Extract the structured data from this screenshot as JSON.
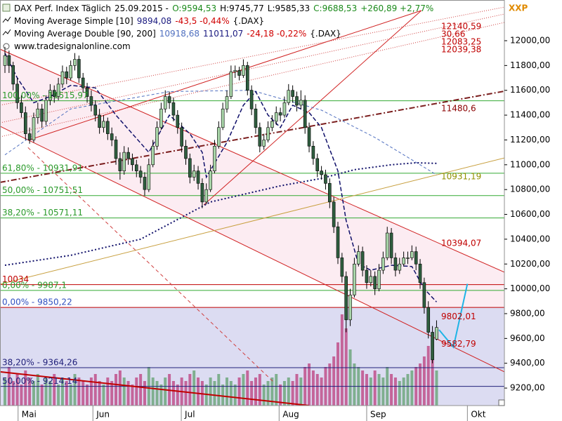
{
  "chart_data": {
    "type": "candlestick",
    "header": [
      [
        {
          "text": "DAX Perf. Index Täglich",
          "color": "#000000"
        },
        {
          "text": "25.09.2015 -",
          "color": "#000000"
        },
        {
          "text": "O:9594,53",
          "color": "#1a8a1a"
        },
        {
          "text": "H:9745,77",
          "color": "#000000"
        },
        {
          "text": "L:9585,33",
          "color": "#000000"
        },
        {
          "text": "C:9688,53",
          "color": "#1a8a1a"
        },
        {
          "text": "+260,89 +2,77%",
          "color": "#1a8a1a"
        }
      ],
      [
        {
          "text": "Moving Average Simple [10]",
          "color": "#000000"
        },
        {
          "text": "9894,08",
          "color": "#1a1a80"
        },
        {
          "text": "-43,5 -0,44%",
          "color": "#d00000"
        },
        {
          "text": "{.DAX}",
          "color": "#000000"
        }
      ],
      [
        {
          "text": "Moving Average Double [90, 200]",
          "color": "#000000"
        },
        {
          "text": "10918,68",
          "color": "#4f6fbf"
        },
        {
          "text": "11011,07",
          "color": "#1a1a80"
        },
        {
          "text": "-24,18 -0,22%",
          "color": "#d00000"
        },
        {
          "text": "{.DAX}",
          "color": "#000000"
        }
      ],
      [
        {
          "text": "www.tradesignalonline.com",
          "color": "#000000"
        }
      ]
    ],
    "corner_label": "XXP",
    "xlim": [
      -1.2,
      121.5
    ],
    "xticks": [
      {
        "value": 3.2,
        "label": "Mai"
      },
      {
        "value": 21.4,
        "label": "Jun"
      },
      {
        "value": 42.9,
        "label": "Jul"
      },
      {
        "value": 66.7,
        "label": "Aug"
      },
      {
        "value": 88.0,
        "label": "Sep"
      },
      {
        "value": 112.5,
        "label": "Okt"
      }
    ],
    "ylim": [
      9059,
      12328
    ],
    "yticks": [
      {
        "value": 9200,
        "label": "9200,00"
      },
      {
        "value": 9400,
        "label": "9400,00"
      },
      {
        "value": 9600,
        "label": "9600,00"
      },
      {
        "value": 9800,
        "label": "9800,00"
      },
      {
        "value": 10000,
        "label": "10000,00"
      },
      {
        "value": 10200,
        "label": "10200,00"
      },
      {
        "value": 10400,
        "label": "10400,00"
      },
      {
        "value": 10600,
        "label": "10600,00"
      },
      {
        "value": 10800,
        "label": "10800,00"
      },
      {
        "value": 11000,
        "label": "11000,00"
      },
      {
        "value": 11200,
        "label": "11200,00"
      },
      {
        "value": 11400,
        "label": "11400,00"
      },
      {
        "value": 11600,
        "label": "11600,00"
      },
      {
        "value": 11800,
        "label": "11800,00"
      },
      {
        "value": 12000,
        "label": "12000,00"
      }
    ],
    "up_color": "#a8d5a8",
    "down_color": "#2f5f3f",
    "ohlc": [
      [
        11800,
        11950,
        11740,
        11880
      ],
      [
        11880,
        11920,
        11740,
        11800
      ],
      [
        11800,
        11830,
        11600,
        11650
      ],
      [
        11650,
        11700,
        11450,
        11500
      ],
      [
        11500,
        11560,
        11380,
        11420
      ],
      [
        11420,
        11470,
        11200,
        11250
      ],
      [
        11250,
        11300,
        11170,
        11200
      ],
      [
        11200,
        11420,
        11180,
        11380
      ],
      [
        11380,
        11500,
        11330,
        11450
      ],
      [
        11450,
        11490,
        11300,
        11350
      ],
      [
        11350,
        11560,
        11320,
        11520
      ],
      [
        11520,
        11650,
        11480,
        11600
      ],
      [
        11600,
        11640,
        11500,
        11550
      ],
      [
        11550,
        11700,
        11520,
        11650
      ],
      [
        11650,
        11800,
        11620,
        11750
      ],
      [
        11750,
        11790,
        11650,
        11700
      ],
      [
        11700,
        11840,
        11680,
        11800
      ],
      [
        11800,
        11900,
        11760,
        11850
      ],
      [
        11850,
        11880,
        11660,
        11700
      ],
      [
        11700,
        11740,
        11580,
        11620
      ],
      [
        11620,
        11660,
        11500,
        11550
      ],
      [
        11550,
        11600,
        11430,
        11480
      ],
      [
        11480,
        11520,
        11350,
        11400
      ],
      [
        11400,
        11450,
        11250,
        11300
      ],
      [
        11300,
        11400,
        11260,
        11350
      ],
      [
        11350,
        11380,
        11200,
        11250
      ],
      [
        11250,
        11300,
        11150,
        11200
      ],
      [
        11200,
        11230,
        11000,
        11050
      ],
      [
        11050,
        11100,
        10880,
        10950
      ],
      [
        10950,
        11150,
        10920,
        11100
      ],
      [
        11100,
        11140,
        11000,
        11050
      ],
      [
        11050,
        11090,
        10950,
        11000
      ],
      [
        11000,
        11040,
        10900,
        10950
      ],
      [
        10950,
        10990,
        10850,
        10900
      ],
      [
        10900,
        10940,
        10750,
        10800
      ],
      [
        10800,
        11050,
        10780,
        11000
      ],
      [
        11000,
        11200,
        10980,
        11150
      ],
      [
        11150,
        11350,
        11120,
        11300
      ],
      [
        11300,
        11500,
        11280,
        11450
      ],
      [
        11450,
        11600,
        11420,
        11550
      ],
      [
        11550,
        11590,
        11450,
        11500
      ],
      [
        11500,
        11540,
        11350,
        11400
      ],
      [
        11400,
        11440,
        11250,
        11300
      ],
      [
        11300,
        11340,
        11100,
        11150
      ],
      [
        11150,
        11200,
        11000,
        11050
      ],
      [
        11050,
        11090,
        10850,
        10900
      ],
      [
        10900,
        11000,
        10870,
        10950
      ],
      [
        10950,
        10990,
        10800,
        10850
      ],
      [
        10850,
        10890,
        10650,
        10700
      ],
      [
        10700,
        10850,
        10680,
        10800
      ],
      [
        10800,
        11000,
        10780,
        10950
      ],
      [
        10950,
        11200,
        10930,
        11150
      ],
      [
        11150,
        11350,
        11130,
        11300
      ],
      [
        11300,
        11500,
        11280,
        11450
      ],
      [
        11450,
        11600,
        11420,
        11550
      ],
      [
        11550,
        11800,
        11530,
        11750
      ],
      [
        11750,
        11800,
        11700,
        11760
      ],
      [
        11760,
        11790,
        11680,
        11720
      ],
      [
        11720,
        11850,
        11700,
        11800
      ],
      [
        11800,
        11830,
        11560,
        11600
      ],
      [
        11600,
        11640,
        11400,
        11450
      ],
      [
        11450,
        11490,
        11250,
        11300
      ],
      [
        11300,
        11340,
        11100,
        11150
      ],
      [
        11150,
        11250,
        11120,
        11200
      ],
      [
        11200,
        11350,
        11180,
        11300
      ],
      [
        11300,
        11400,
        11270,
        11350
      ],
      [
        11350,
        11470,
        11320,
        11420
      ],
      [
        11420,
        11460,
        11350,
        11400
      ],
      [
        11400,
        11550,
        11380,
        11500
      ],
      [
        11500,
        11650,
        11480,
        11600
      ],
      [
        11600,
        11640,
        11500,
        11550
      ],
      [
        11550,
        11590,
        11430,
        11480
      ],
      [
        11480,
        11600,
        11450,
        11520
      ],
      [
        11520,
        11560,
        11250,
        11300
      ],
      [
        11300,
        11340,
        11100,
        11150
      ],
      [
        11150,
        11190,
        11000,
        11050
      ],
      [
        11050,
        11090,
        10900,
        10950
      ],
      [
        10950,
        10990,
        10880,
        10920
      ],
      [
        10920,
        10960,
        10800,
        10850
      ],
      [
        10850,
        10890,
        10650,
        10700
      ],
      [
        10700,
        10740,
        10450,
        10500
      ],
      [
        10500,
        10540,
        10200,
        10250
      ],
      [
        10250,
        10290,
        10050,
        10100
      ],
      [
        10100,
        10140,
        9650,
        9750
      ],
      [
        9750,
        10000,
        9700,
        9950
      ],
      [
        9950,
        10250,
        9930,
        10200
      ],
      [
        10200,
        10350,
        10180,
        10300
      ],
      [
        10300,
        10340,
        10100,
        10150
      ],
      [
        10150,
        10190,
        10000,
        10050
      ],
      [
        10050,
        10150,
        10020,
        10100
      ],
      [
        10100,
        10140,
        9950,
        10000
      ],
      [
        10000,
        10200,
        9980,
        10150
      ],
      [
        10150,
        10300,
        10120,
        10250
      ],
      [
        10250,
        10500,
        10230,
        10450
      ],
      [
        10450,
        10490,
        10200,
        10250
      ],
      [
        10250,
        10290,
        10100,
        10150
      ],
      [
        10150,
        10250,
        10120,
        10200
      ],
      [
        10200,
        10300,
        10180,
        10250
      ],
      [
        10250,
        10300,
        10200,
        10250
      ],
      [
        10250,
        10350,
        10230,
        10300
      ],
      [
        10300,
        10340,
        10150,
        10200
      ],
      [
        10200,
        10240,
        10000,
        10050
      ],
      [
        10050,
        10090,
        9800,
        9850
      ],
      [
        9850,
        9900,
        9600,
        9650
      ],
      [
        9650,
        9700,
        9400,
        9427.64
      ],
      [
        9594.53,
        9745.77,
        9585.33,
        9688.53
      ]
    ],
    "volume": [
      40,
      55,
      35,
      45,
      30,
      50,
      40,
      35,
      45,
      30,
      40,
      35,
      45,
      30,
      40,
      35,
      30,
      45,
      40,
      35,
      30,
      40,
      45,
      35,
      30,
      40,
      35,
      45,
      50,
      40,
      35,
      30,
      40,
      45,
      35,
      55,
      40,
      35,
      30,
      40,
      45,
      35,
      30,
      40,
      35,
      45,
      50,
      40,
      35,
      30,
      40,
      35,
      45,
      30,
      40,
      35,
      30,
      40,
      45,
      50,
      35,
      40,
      45,
      30,
      35,
      40,
      45,
      30,
      35,
      40,
      35,
      45,
      40,
      55,
      60,
      50,
      45,
      40,
      55,
      60,
      70,
      90,
      130,
      110,
      80,
      60,
      55,
      50,
      45,
      40,
      50,
      45,
      40,
      55,
      45,
      40,
      35,
      40,
      45,
      50,
      55,
      60,
      70,
      85,
      65,
      50
    ],
    "volume_up_color": "#7faf8f",
    "volume_down_color": "#c4659a",
    "overlays": [
      {
        "color": "#4f6fbf",
        "dash": "4,3",
        "width": 1,
        "x": [
          0,
          16,
          40,
          60,
          77,
          90,
          100,
          105
        ],
        "values": [
          11080,
          11450,
          11590,
          11600,
          11440,
          11220,
          11020,
          10918.68
        ]
      },
      {
        "color": "#10106a",
        "dash": "2,3",
        "width": 2,
        "x": [
          0,
          16,
          33,
          50,
          67,
          77,
          85,
          94,
          100,
          105
        ],
        "values": [
          10190,
          10270,
          10400,
          10700,
          10830,
          10890,
          10960,
          11000,
          11016,
          11011.07
        ]
      },
      {
        "color": "#10106a",
        "dash": "6,3",
        "width": 1.5,
        "x": [
          0,
          3,
          7,
          11,
          16,
          22,
          27,
          31,
          35,
          40,
          45,
          48,
          49,
          54,
          58,
          61,
          64,
          67,
          70,
          74,
          77,
          81,
          83,
          86,
          89,
          94,
          99,
          102,
          105
        ],
        "values": [
          11900,
          11700,
          11500,
          11550,
          11640,
          11620,
          11400,
          11250,
          11100,
          11400,
          11250,
          11100,
          10900,
          11180,
          11480,
          11590,
          11400,
          11300,
          11480,
          11420,
          11300,
          10950,
          10550,
          10200,
          10150,
          10190,
          10180,
          10000,
          9894.08
        ]
      }
    ],
    "trendlines": [
      {
        "color": "#d02020",
        "dash": "",
        "width": 1,
        "fill": "#fcecf2",
        "x": [
          -1.2,
          121.5
        ],
        "values": [
          11932,
          10134
        ]
      },
      {
        "color": "#d02020",
        "dash": "",
        "width": 1,
        "x": [
          -1.2,
          121.5
        ],
        "values": [
          11310,
          9331
        ]
      },
      {
        "color": "#d02020",
        "dash": "",
        "width": 1,
        "x": [
          5.6,
          101.3
        ],
        "values": [
          11197,
          12243
        ]
      },
      {
        "color": "#d02020",
        "dash": "",
        "width": 1,
        "x": [
          48.4,
          101.3
        ],
        "values": [
          10677,
          12243
        ]
      },
      {
        "color": "#d04040",
        "dash": "1,2",
        "width": 1,
        "x": [
          -1.2,
          121.5
        ],
        "values": [
          11480,
          12271
        ]
      },
      {
        "color": "#d04040",
        "dash": "1,2",
        "width": 1,
        "x": [
          -1.2,
          121.5
        ],
        "values": [
          11338,
          12215
        ]
      },
      {
        "color": "#d04040",
        "dash": "1,2",
        "width": 1,
        "x": [
          -1.2,
          121.5
        ],
        "values": [
          11225,
          12147
        ]
      },
      {
        "color": "#7a1c1c",
        "dash": "8,3,2,3",
        "width": 2,
        "x": [
          -1.2,
          121.5
        ],
        "values": [
          10858,
          11593
        ]
      },
      {
        "color": "#c8a040",
        "dash": "",
        "width": 1,
        "x": [
          -1.2,
          121.5
        ],
        "values": [
          10037,
          11055
        ]
      },
      {
        "color": "#c00000",
        "dash": "",
        "width": 2,
        "x": [
          -1.2,
          74
        ],
        "values": [
          9331,
          9059
        ]
      },
      {
        "color": "#d04040",
        "dash": "5,4",
        "width": 1,
        "x": [
          5.6,
          65.5
        ],
        "values": [
          11139,
          9244
        ]
      },
      {
        "color": "#1eb4e6",
        "dash": "",
        "width": 2,
        "x": [
          105.6,
          109.1,
          112.5
        ],
        "values": [
          9670,
          9530,
          10040
        ]
      }
    ],
    "levels": [
      {
        "value": 11515.97,
        "label": "100,00% - 11515,97",
        "color": "#33aa33",
        "label_color": "#2a9a2a"
      },
      {
        "value": 10931.91,
        "label": "61,80% - 10931,91",
        "color": "#33aa33",
        "label_color": "#2a9a2a"
      },
      {
        "value": 10751.51,
        "label": "50,00% - 10751,51",
        "color": "#33aa33",
        "label_color": "#2a9a2a"
      },
      {
        "value": 10571.11,
        "label": "38,20% - 10571,11",
        "color": "#33aa33",
        "label_color": "#2a9a2a"
      },
      {
        "value": 10034,
        "label": "10034",
        "color": "#c00000",
        "label_color": "#c00000"
      },
      {
        "value": 9987.1,
        "label": "0,00% - 9987,1",
        "color": "#33aa33",
        "label_color": "#2a9a2a"
      },
      {
        "value": 9850.22,
        "label": "0,00% - 9850,22",
        "color": "#c00000",
        "label_color": "#3050c0",
        "fill": "#dcdcf2"
      },
      {
        "value": 9364.26,
        "label": "38,20% - 9364,26",
        "color": "#20207a",
        "label_color": "#20207a"
      },
      {
        "value": 9214.14,
        "label": "50,00% - 9214,14",
        "color": "#20207a",
        "label_color": "#20207a"
      }
    ],
    "price_tags": [
      {
        "value": 12140.59,
        "label": "12140,59",
        "color": "#c00000"
      },
      {
        "value": 12130.66,
        "label": "30,66",
        "color": "#c00000"
      },
      {
        "value": 12083.25,
        "label": "12083,25",
        "color": "#c00000"
      },
      {
        "value": 12039.38,
        "label": "12039,38",
        "color": "#c00000"
      },
      {
        "value": 11480.6,
        "label": "11480,6",
        "color": "#8b0000"
      },
      {
        "value": 10931.19,
        "label": "10931,19",
        "color": "#909000"
      },
      {
        "value": 10394.07,
        "label": "10394,07",
        "color": "#c00000"
      },
      {
        "value": 9802.01,
        "label": "9802,01",
        "color": "#c00000"
      },
      {
        "value": 9582.79,
        "label": "9582,79",
        "color": "#c00000"
      }
    ]
  }
}
